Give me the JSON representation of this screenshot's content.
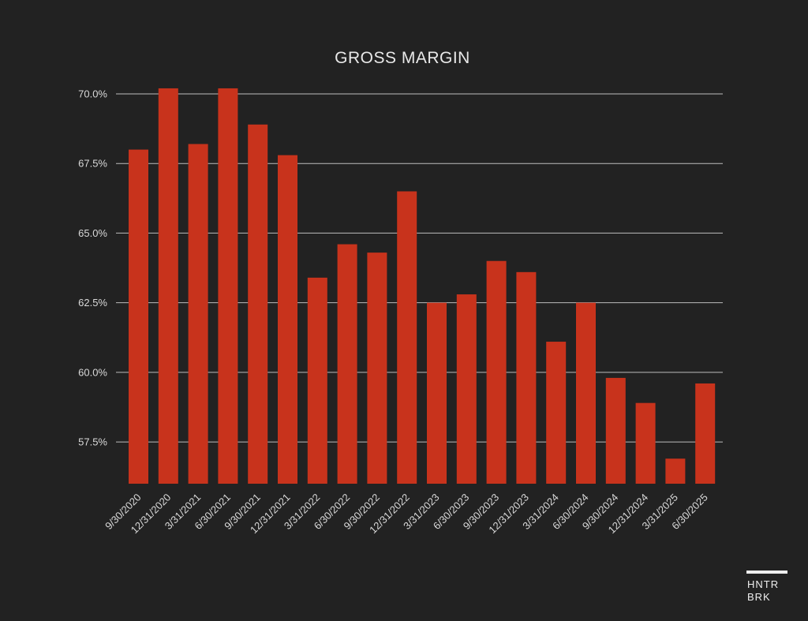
{
  "chart_data": {
    "type": "bar",
    "title": "GROSS MARGIN",
    "categories": [
      "9/30/2020",
      "12/31/2020",
      "3/31/2021",
      "6/30/2021",
      "9/30/2021",
      "12/31/2021",
      "3/31/2022",
      "6/30/2022",
      "9/30/2022",
      "12/31/2022",
      "3/31/2023",
      "6/30/2023",
      "9/30/2023",
      "12/31/2023",
      "3/31/2024",
      "6/30/2024",
      "9/30/2024",
      "12/31/2024",
      "3/31/2025",
      "6/30/2025"
    ],
    "values": [
      68.0,
      70.2,
      68.2,
      70.2,
      68.9,
      67.8,
      63.4,
      64.6,
      64.3,
      66.5,
      62.5,
      62.8,
      64.0,
      63.6,
      61.1,
      62.5,
      59.8,
      58.9,
      56.9,
      59.6
    ],
    "yticks": [
      "70.0%",
      "67.5%",
      "65.0%",
      "62.5%",
      "60.0%",
      "57.5%"
    ],
    "ytick_values": [
      70.0,
      67.5,
      65.0,
      62.5,
      60.0,
      57.5
    ],
    "ylim": [
      56.0,
      70.0
    ],
    "grid": true,
    "bar_color": "#c8331c",
    "background": "#222222"
  },
  "logo": {
    "line1": "HNTR",
    "line2": "BRK"
  }
}
